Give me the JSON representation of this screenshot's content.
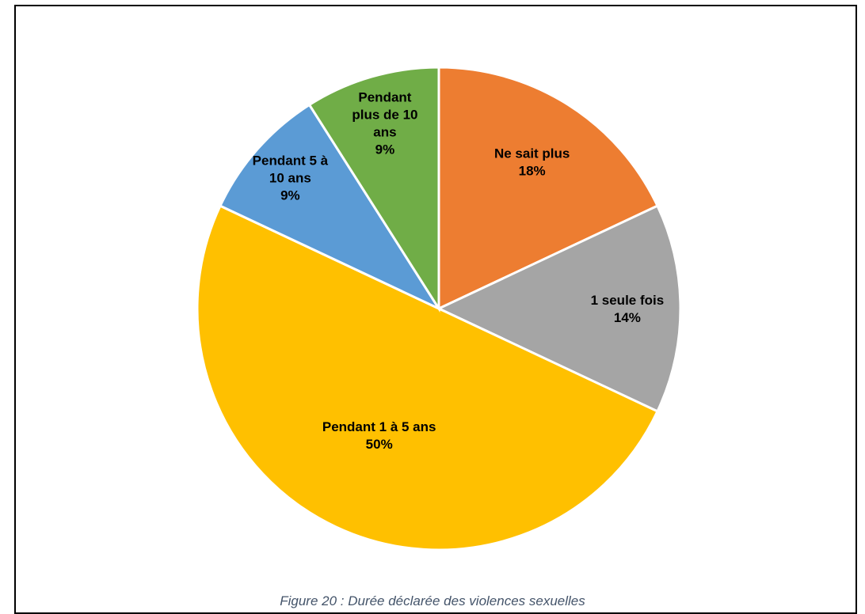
{
  "caption": "Figure 20 : Durée déclarée des violences sexuelles",
  "chart_data": {
    "type": "pie",
    "title": "",
    "start_angle_deg": 0,
    "direction": "clockwise",
    "slices": [
      {
        "label_lines": [
          "Ne sait plus"
        ],
        "percent_label": "18%",
        "value": 18,
        "color": "#ED7D31"
      },
      {
        "label_lines": [
          "1 seule fois"
        ],
        "percent_label": "14%",
        "value": 14,
        "color": "#A5A5A5"
      },
      {
        "label_lines": [
          "Pendant 1 à 5 ans"
        ],
        "percent_label": "50%",
        "value": 50,
        "color": "#FFC000"
      },
      {
        "label_lines": [
          "Pendant 5 à",
          "10 ans"
        ],
        "percent_label": "9%",
        "value": 9,
        "color": "#5B9BD5"
      },
      {
        "label_lines": [
          "Pendant",
          "plus de 10",
          "ans"
        ],
        "percent_label": "9%",
        "value": 9,
        "color": "#70AD47"
      }
    ]
  }
}
